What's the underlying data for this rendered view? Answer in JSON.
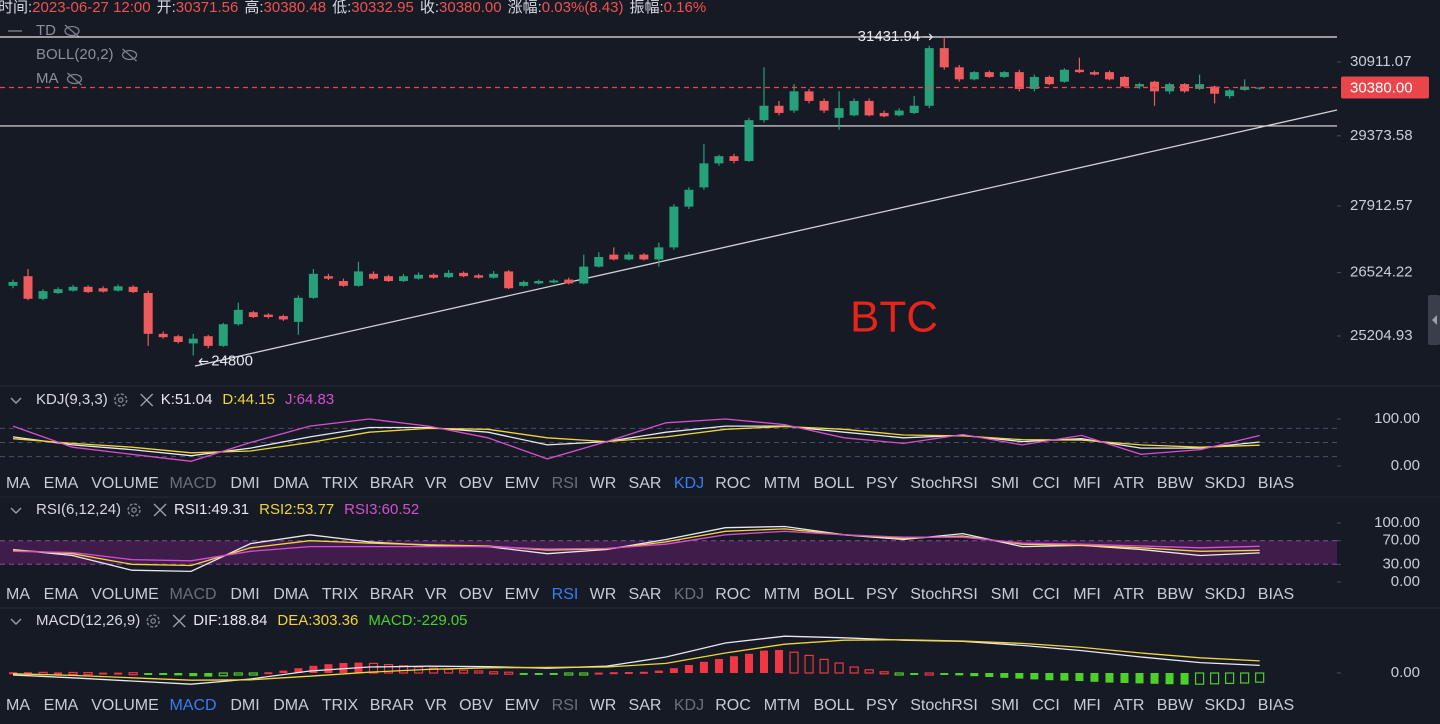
{
  "header": {
    "items": [
      {
        "label": "时间:",
        "value": "2023-06-27 12:00"
      },
      {
        "label": "开:",
        "value": "30371.56"
      },
      {
        "label": "高:",
        "value": "30380.48"
      },
      {
        "label": "低:",
        "value": "30332.95"
      },
      {
        "label": "收:",
        "value": "30380.00"
      },
      {
        "label": "涨幅:",
        "value": "0.03%(8.43)"
      },
      {
        "label": "振幅:",
        "value": "0.16%"
      }
    ]
  },
  "tabs": [
    "MA",
    "EMA",
    "VOLUME",
    "MACD",
    "DMI",
    "DMA",
    "TRIX",
    "BRAR",
    "VR",
    "OBV",
    "EMV",
    "RSI",
    "WR",
    "SAR",
    "KDJ",
    "ROC",
    "MTM",
    "BOLL",
    "PSY",
    "StochRSI",
    "SMI",
    "CCI",
    "MFI",
    "ATR",
    "BBW",
    "SKDJ",
    "BIAS"
  ],
  "tab_rows": [
    {
      "active": 14,
      "muted": [
        3,
        11
      ]
    },
    {
      "active": 11,
      "muted": [
        3,
        14
      ]
    },
    {
      "active": 3,
      "muted": [
        11,
        14
      ]
    }
  ],
  "chart_data": [
    {
      "type": "candlestick",
      "overlays": [
        "TD",
        "BOLL(20,2)",
        "MA"
      ],
      "watermark": "BTC",
      "colors": {
        "up": "#26a17b",
        "down": "#ef5a5d"
      },
      "open": [
        26250,
        26450,
        25980,
        26100,
        26150,
        26230,
        26200,
        26150,
        26230,
        26100,
        25250,
        25200,
        25050,
        25200,
        25000,
        25450,
        25700,
        25650,
        25620,
        25500,
        26000,
        26450,
        26350,
        26250,
        26500,
        26450,
        26350,
        26400,
        26480,
        26430,
        26520,
        26470,
        26420,
        26550,
        26250,
        26300,
        26320,
        26380,
        26300,
        26650,
        26900,
        26800,
        26900,
        26800,
        27050,
        27900,
        28300,
        28800,
        28950,
        28850,
        29700,
        30000,
        29900,
        30300,
        30100,
        29750,
        29800,
        30100,
        29850,
        29800,
        29850,
        30000,
        31200,
        30800,
        30550,
        30700,
        30600,
        30700,
        30350,
        30600,
        30500,
        30750,
        30700,
        30700,
        30600,
        30400,
        30500,
        30300,
        30450,
        30350,
        30400,
        30200,
        30330,
        30371.56
      ],
      "high": [
        26380,
        26600,
        26180,
        26220,
        26270,
        26260,
        26240,
        26280,
        26260,
        26150,
        25300,
        25230,
        25250,
        25230,
        25480,
        25900,
        25730,
        25680,
        25650,
        26050,
        26600,
        26500,
        26400,
        26750,
        26550,
        26480,
        26500,
        26530,
        26510,
        26580,
        26550,
        26500,
        26560,
        26580,
        26360,
        26380,
        26390,
        26420,
        26900,
        26950,
        27050,
        26950,
        26930,
        27150,
        27950,
        28300,
        29200,
        28980,
        29000,
        29750,
        30800,
        30100,
        30450,
        30350,
        30150,
        30300,
        30150,
        30150,
        29900,
        29950,
        30200,
        31250,
        31431.94,
        30850,
        30720,
        30730,
        30720,
        30750,
        30650,
        30630,
        30780,
        31000,
        30730,
        30730,
        30620,
        30480,
        30520,
        30480,
        30470,
        30650,
        30420,
        30350,
        30550,
        30380.48
      ],
      "low": [
        26200,
        25950,
        25950,
        26080,
        26130,
        26100,
        26110,
        26130,
        26100,
        25000,
        25150,
        25050,
        24800,
        24950,
        24980,
        25420,
        25580,
        25570,
        25520,
        25230,
        25980,
        26370,
        26230,
        26230,
        26380,
        26330,
        26330,
        26380,
        26400,
        26410,
        26430,
        26400,
        26400,
        26180,
        26230,
        26280,
        26300,
        26280,
        26280,
        26630,
        26780,
        26780,
        26780,
        26650,
        27000,
        27850,
        28250,
        28750,
        28800,
        28830,
        29650,
        29800,
        29850,
        30050,
        29850,
        29500,
        29780,
        29780,
        29760,
        29780,
        29830,
        29950,
        30750,
        30500,
        30530,
        30580,
        30580,
        30300,
        30300,
        30430,
        30480,
        30680,
        30630,
        30530,
        30380,
        30350,
        30000,
        30250,
        30270,
        30330,
        30050,
        30150,
        30310,
        30332.95
      ],
      "close": [
        26330,
        25980,
        26140,
        26180,
        26230,
        26120,
        26130,
        26240,
        26120,
        25250,
        25180,
        25080,
        25150,
        25000,
        25450,
        25750,
        25600,
        25600,
        25550,
        26000,
        26500,
        26400,
        26250,
        26550,
        26400,
        26350,
        26450,
        26480,
        26420,
        26520,
        26450,
        26420,
        26500,
        26200,
        26330,
        26350,
        26360,
        26300,
        26650,
        26850,
        26800,
        26900,
        26800,
        27050,
        27900,
        28250,
        28800,
        28950,
        28850,
        29700,
        30000,
        29850,
        30300,
        30100,
        29900,
        29950,
        30100,
        29800,
        29780,
        29900,
        30000,
        31200,
        30800,
        30550,
        30700,
        30600,
        30700,
        30350,
        30600,
        30450,
        30750,
        30700,
        30650,
        30550,
        30400,
        30450,
        30300,
        30450,
        30300,
        30450,
        30250,
        30320,
        30400,
        30380
      ],
      "ylim": [
        24164,
        32202
      ],
      "yticks": [
        25204.93,
        26524.22,
        27912.57,
        29373.58,
        30911.07
      ],
      "last_price": {
        "value": 30380,
        "label": "30380.00"
      },
      "hlines": [
        31431.94,
        29580
      ],
      "trendline": [
        24579,
        29911
      ],
      "annotations": {
        "high": 31431.94,
        "low": 24800
      }
    },
    {
      "type": "line",
      "title": "KDJ(9,3,3)",
      "series": [
        {
          "name": "K:51.04",
          "color": "#e6e8ee",
          "values": [
            62,
            45,
            35,
            22,
            38,
            62,
            82,
            82,
            72,
            45,
            52,
            72,
            85,
            85,
            72,
            60,
            65,
            52,
            58,
            38,
            38,
            51.04
          ]
        },
        {
          "name": "D:44.15",
          "color": "#f0d43a",
          "values": [
            58,
            48,
            40,
            28,
            32,
            50,
            72,
            80,
            78,
            60,
            52,
            62,
            78,
            84,
            78,
            66,
            64,
            56,
            55,
            45,
            40,
            44.15
          ]
        },
        {
          "name": "J:64.83",
          "color": "#d64fd0",
          "values": [
            85,
            40,
            25,
            10,
            50,
            85,
            100,
            85,
            60,
            15,
            52,
            92,
            100,
            88,
            60,
            48,
            67,
            45,
            65,
            25,
            35,
            64.83
          ]
        }
      ],
      "ylim": [
        0,
        100
      ],
      "yticks": [
        {
          "value": 0,
          "label": "0.00"
        },
        {
          "value": 100,
          "label": "100.00"
        }
      ],
      "guides": [
        20,
        50,
        80
      ]
    },
    {
      "type": "line",
      "title": "RSI(6,12,24)",
      "series": [
        {
          "name": "RSI1:49.31",
          "color": "#e6e8ee",
          "values": [
            55,
            45,
            20,
            18,
            65,
            80,
            68,
            62,
            60,
            48,
            55,
            72,
            92,
            94,
            80,
            72,
            82,
            60,
            62,
            55,
            45,
            49.31
          ]
        },
        {
          "name": "RSI2:53.77",
          "color": "#f0d43a",
          "values": [
            54,
            48,
            30,
            28,
            58,
            70,
            66,
            63,
            61,
            54,
            56,
            68,
            86,
            90,
            80,
            74,
            78,
            64,
            62,
            58,
            52,
            53.77
          ]
        },
        {
          "name": "RSI3:60.52",
          "color": "#d64fd0",
          "values": [
            52,
            50,
            38,
            36,
            52,
            60,
            60,
            60,
            60,
            56,
            57,
            64,
            80,
            86,
            80,
            76,
            76,
            66,
            64,
            61,
            58,
            60.52
          ]
        }
      ],
      "ylim": [
        0,
        100
      ],
      "yticks": [
        {
          "value": 0,
          "label": "0.00"
        },
        {
          "value": 30,
          "label": "30.00"
        },
        {
          "value": 70,
          "label": "70.00"
        },
        {
          "value": 100,
          "label": "100.00"
        }
      ],
      "band": [
        30,
        70
      ]
    },
    {
      "type": "macd",
      "title": "MACD(12,26,9)",
      "series": [
        {
          "name": "DIF:188.84",
          "color": "#e6e8ee",
          "values": [
            -50,
            -120,
            -200,
            -280,
            -150,
            50,
            150,
            170,
            160,
            120,
            170,
            400,
            750,
            920,
            880,
            820,
            790,
            690,
            560,
            400,
            260,
            188.84
          ]
        },
        {
          "name": "DEA:303.36",
          "color": "#f0d43a",
          "values": [
            -20,
            -60,
            -120,
            -180,
            -170,
            -80,
            20,
            90,
            130,
            140,
            150,
            240,
            500,
            720,
            820,
            830,
            800,
            740,
            640,
            500,
            380,
            303.36
          ]
        }
      ],
      "histogram": {
        "name": "MACD:-229.05",
        "colors": {
          "up": "#f23645",
          "down": "#4cd02a"
        },
        "values": [
          20,
          20,
          15,
          15,
          12,
          10,
          10,
          10,
          8,
          -10,
          -40,
          -60,
          -80,
          -90,
          -70,
          -40,
          -10,
          20,
          60,
          120,
          180,
          220,
          250,
          260,
          240,
          210,
          180,
          150,
          120,
          90,
          70,
          50,
          30,
          20,
          -20,
          -30,
          -30,
          -25,
          -10,
          10,
          20,
          25,
          30,
          60,
          120,
          200,
          280,
          350,
          420,
          480,
          560,
          575,
          520,
          440,
          340,
          250,
          150,
          80,
          30,
          -20,
          -40,
          0,
          -30,
          -60,
          -80,
          -100,
          -120,
          -140,
          -160,
          -180,
          -190,
          -200,
          -220,
          -240,
          -250,
          -260,
          -270,
          -280,
          -290,
          -280,
          -270,
          -260,
          -250,
          -229.05
        ]
      },
      "ylim": [
        -425,
        1025
      ],
      "yticks": [
        {
          "value": 0,
          "label": "0.00"
        }
      ]
    }
  ]
}
